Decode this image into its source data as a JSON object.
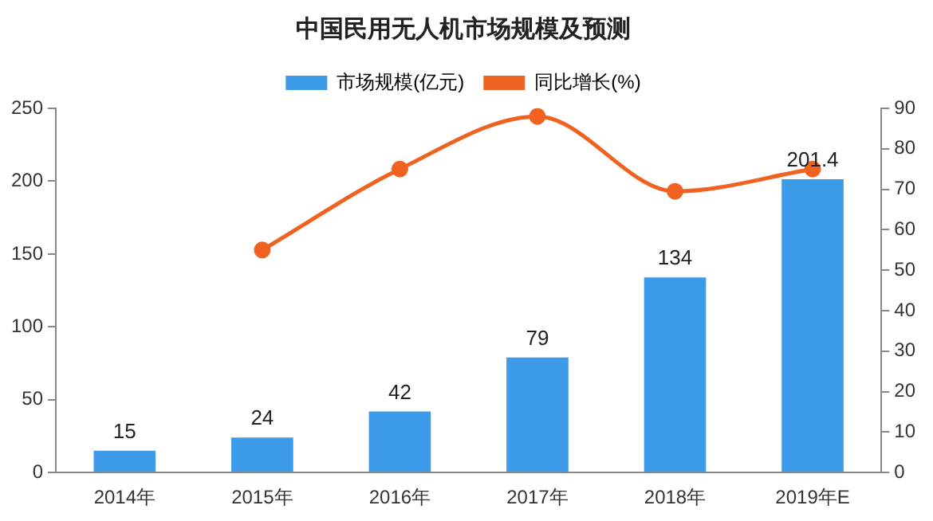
{
  "chart_data": {
    "type": "bar",
    "title": "中国民用无人机市场规模及预测",
    "categories": [
      "2014年",
      "2015年",
      "2016年",
      "2017年",
      "2018年",
      "2019年E"
    ],
    "series": [
      {
        "name": "市场规模(亿元)",
        "color": "#3d9be9",
        "values": [
          15,
          24,
          42,
          79,
          134,
          201.4
        ],
        "value_labels": [
          "15",
          "24",
          "42",
          "79",
          "134",
          "201.4"
        ]
      },
      {
        "name": "同比增长(%)",
        "type": "line",
        "axis": "y2",
        "color": "#f0621f",
        "marker": "circle",
        "values": [
          null,
          55,
          75,
          88,
          69.5,
          75
        ]
      }
    ],
    "ylim": [
      0,
      250
    ],
    "yticks": [
      0,
      50,
      100,
      150,
      200,
      250
    ],
    "y2lim": [
      0,
      90
    ],
    "y2ticks": [
      0,
      10,
      20,
      30,
      40,
      50,
      60,
      70,
      80,
      90
    ],
    "grid": false,
    "legend": "top"
  }
}
